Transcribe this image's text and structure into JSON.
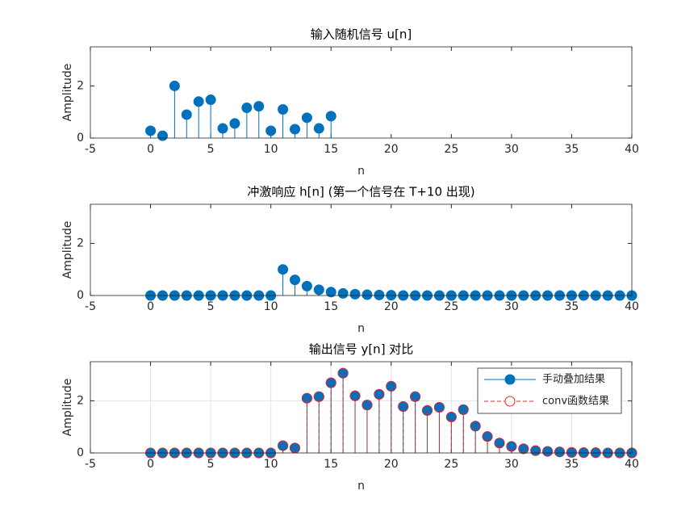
{
  "chart_data": [
    {
      "type": "stem",
      "title": "输入随机信号  u[n]",
      "xlabel": "n",
      "ylabel": "Amplitude",
      "xlim": [
        -5,
        40
      ],
      "xticks": [
        -5,
        0,
        5,
        10,
        15,
        20,
        25,
        30,
        35,
        40
      ],
      "ylim": [
        0,
        3.5
      ],
      "yticks": [
        0,
        2
      ],
      "grid": false,
      "x": [
        0,
        1,
        2,
        3,
        4,
        5,
        6,
        7,
        8,
        9,
        10,
        11,
        12,
        13,
        14,
        15
      ],
      "series": [
        {
          "color": "#0072bd",
          "marker_fill": true,
          "line_style": "solid",
          "values": [
            0.28,
            0.09,
            2.0,
            0.9,
            1.4,
            1.47,
            0.37,
            0.56,
            1.16,
            1.22,
            0.28,
            1.1,
            0.34,
            0.78,
            0.37,
            0.84
          ]
        }
      ]
    },
    {
      "type": "stem",
      "title": "冲激响应  h[n] (第一个信号在  T+10 出现)",
      "xlabel": "n",
      "ylabel": "Amplitude",
      "xlim": [
        -5,
        40
      ],
      "xticks": [
        -5,
        0,
        5,
        10,
        15,
        20,
        25,
        30,
        35,
        40
      ],
      "ylim": [
        0,
        3.5
      ],
      "yticks": [
        0,
        2
      ],
      "grid": false,
      "x": [
        0,
        1,
        2,
        3,
        4,
        5,
        6,
        7,
        8,
        9,
        10,
        11,
        12,
        13,
        14,
        15,
        16,
        17,
        18,
        19,
        20,
        21,
        22,
        23,
        24,
        25,
        26,
        27,
        28,
        29,
        30,
        31,
        32,
        33,
        34,
        35,
        36,
        37,
        38,
        39,
        40
      ],
      "series": [
        {
          "color": "#0072bd",
          "marker_fill": true,
          "line_style": "solid",
          "values": [
            0,
            0,
            0,
            0,
            0,
            0,
            0,
            0,
            0,
            0,
            0,
            1,
            0.6,
            0.36,
            0.22,
            0.13,
            0.08,
            0.05,
            0.03,
            0.02,
            0.01,
            0,
            0,
            0,
            0,
            0,
            0,
            0,
            0,
            0,
            0,
            0,
            0,
            0,
            0,
            0,
            0,
            0,
            0,
            0,
            0
          ]
        }
      ]
    },
    {
      "type": "stem",
      "title": "输出信号  y[n]  对比",
      "xlabel": "n",
      "ylabel": "Amplitude",
      "xlim": [
        -5,
        40
      ],
      "xticks": [
        -5,
        0,
        5,
        10,
        15,
        20,
        25,
        30,
        35,
        40
      ],
      "ylim": [
        0,
        3.5
      ],
      "yticks": [
        0,
        2
      ],
      "grid": true,
      "legend": "northeast",
      "x": [
        0,
        1,
        2,
        3,
        4,
        5,
        6,
        7,
        8,
        9,
        10,
        11,
        12,
        13,
        14,
        15,
        16,
        17,
        18,
        19,
        20,
        21,
        22,
        23,
        24,
        25,
        26,
        27,
        28,
        29,
        30,
        31,
        32,
        33,
        34,
        35,
        36,
        37,
        38,
        39,
        40
      ],
      "series": [
        {
          "name": "手动叠加结果",
          "color": "#0072bd",
          "marker_fill": true,
          "line_style": "solid",
          "values": [
            0,
            0,
            0,
            0,
            0,
            0,
            0,
            0,
            0,
            0,
            0,
            0.28,
            0.19,
            2.1,
            2.16,
            2.69,
            3.06,
            2.19,
            1.84,
            2.25,
            2.56,
            1.78,
            2.16,
            1.63,
            1.75,
            1.38,
            1.66,
            1.03,
            0.63,
            0.38,
            0.25,
            0.16,
            0.09,
            0.06,
            0.04,
            0.02,
            0.01,
            0.01,
            0,
            0,
            0
          ]
        },
        {
          "name": "conv函数结果",
          "color": "#e0232e",
          "marker_fill": false,
          "line_style": "dashed",
          "values": [
            0,
            0,
            0,
            0,
            0,
            0,
            0,
            0,
            0,
            0,
            0,
            0.28,
            0.19,
            2.1,
            2.16,
            2.69,
            3.06,
            2.19,
            1.84,
            2.25,
            2.56,
            1.78,
            2.16,
            1.63,
            1.75,
            1.38,
            1.66,
            1.03,
            0.63,
            0.38,
            0.25,
            0.16,
            0.09,
            0.06,
            0.04,
            0.02,
            0.01,
            0.01,
            0,
            0,
            0
          ]
        }
      ]
    }
  ]
}
